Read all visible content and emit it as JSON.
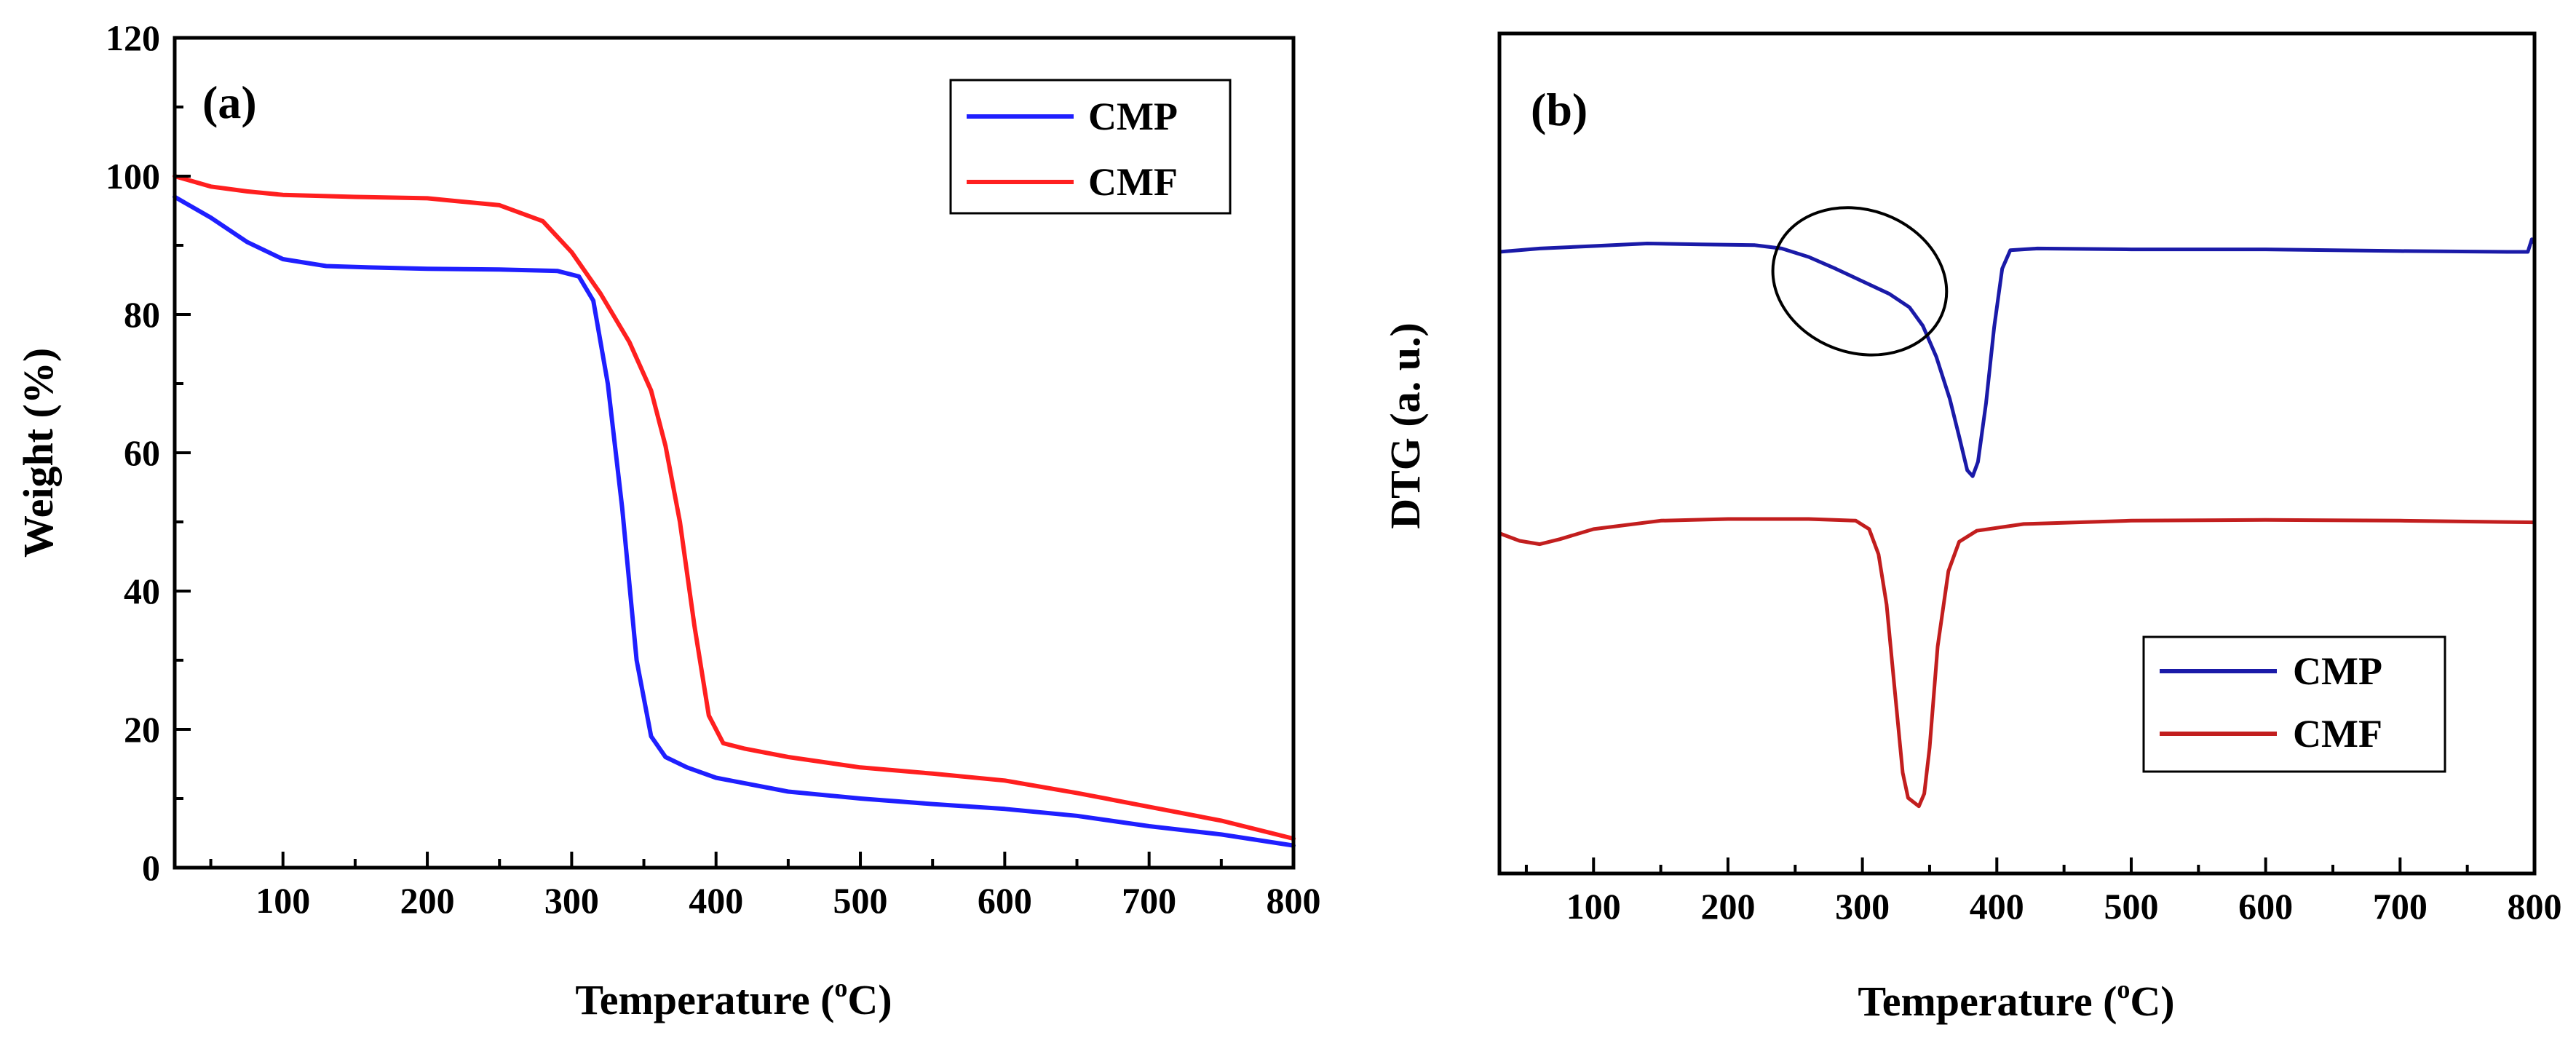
{
  "chart_data": [
    {
      "type": "line",
      "panel_label": "(a)",
      "xlabel": {
        "prefix": "Temperature (",
        "sup": "o",
        "suffix": "C)"
      },
      "ylabel": "Weight (%)",
      "xlim": [
        25,
        800
      ],
      "ylim": [
        0,
        120
      ],
      "xticks": [
        100,
        200,
        300,
        400,
        500,
        600,
        700,
        800
      ],
      "yticks": [
        0,
        20,
        40,
        60,
        80,
        100,
        120
      ],
      "legend_position": "top-right",
      "series": [
        {
          "name": "CMP",
          "color": "#1f1fff",
          "x": [
            25,
            50,
            75,
            100,
            130,
            160,
            200,
            250,
            290,
            305,
            315,
            325,
            335,
            345,
            355,
            365,
            380,
            400,
            450,
            500,
            550,
            600,
            650,
            700,
            750,
            800
          ],
          "y": [
            97,
            94,
            90.5,
            88,
            87,
            86.8,
            86.6,
            86.5,
            86.3,
            85.5,
            82,
            70,
            52,
            30,
            19,
            16,
            14.5,
            13,
            11,
            10,
            9.2,
            8.5,
            7.5,
            6,
            4.8,
            3.2
          ]
        },
        {
          "name": "CMF",
          "color": "#ff1f1f",
          "x": [
            25,
            50,
            75,
            100,
            150,
            200,
            250,
            280,
            300,
            320,
            340,
            355,
            365,
            375,
            385,
            395,
            405,
            420,
            450,
            500,
            550,
            600,
            650,
            700,
            750,
            800
          ],
          "y": [
            100,
            98.5,
            97.8,
            97.3,
            97,
            96.8,
            95.8,
            93.5,
            89,
            83,
            76,
            69,
            61,
            50,
            35,
            22,
            18,
            17.2,
            16,
            14.5,
            13.6,
            12.6,
            10.8,
            8.8,
            6.8,
            4.2
          ]
        }
      ]
    },
    {
      "type": "line",
      "panel_label": "(b)",
      "xlabel": {
        "prefix": "Temperature (",
        "sup": "o",
        "suffix": "C)"
      },
      "ylabel": "DTG (a. u.)",
      "xlim": [
        30,
        800
      ],
      "ylim": [
        0,
        100
      ],
      "xticks": [
        100,
        200,
        300,
        400,
        500,
        600,
        700,
        800
      ],
      "yticks": [],
      "legend_position": "bottom-right",
      "series": [
        {
          "name": "CMP",
          "color": "#1a1aa8",
          "x": [
            30,
            60,
            100,
            140,
            180,
            220,
            240,
            260,
            280,
            300,
            320,
            335,
            345,
            355,
            365,
            372,
            378,
            382,
            386,
            392,
            398,
            404,
            410,
            430,
            500,
            600,
            700,
            780,
            795,
            798,
            800
          ],
          "y": [
            74,
            74.4,
            74.7,
            75,
            74.9,
            74.8,
            74.4,
            73.4,
            72,
            70.5,
            69,
            67.4,
            65.2,
            61.5,
            56.5,
            52,
            48,
            47.3,
            49,
            56,
            65,
            72,
            74.2,
            74.4,
            74.3,
            74.3,
            74.1,
            74,
            74,
            75.5,
            75
          ]
        },
        {
          "name": "CMF",
          "color": "#c21e1e",
          "x": [
            30,
            45,
            60,
            75,
            100,
            150,
            200,
            260,
            295,
            305,
            312,
            318,
            324,
            330,
            334,
            338,
            342,
            346,
            350,
            356,
            364,
            372,
            385,
            420,
            500,
            600,
            700,
            800
          ],
          "y": [
            40.5,
            39.6,
            39.2,
            39.8,
            41,
            42,
            42.2,
            42.2,
            42,
            41,
            38,
            32,
            22,
            12,
            9,
            8.5,
            8,
            9.5,
            15,
            27,
            36,
            39.5,
            40.8,
            41.6,
            42,
            42.1,
            42,
            41.8
          ]
        }
      ],
      "annotations": [
        {
          "type": "ellipse",
          "cx_data": 298,
          "cy_data": 70.5,
          "rx_data": 66,
          "ry_data": 8.5,
          "rotation_deg": 20
        }
      ]
    }
  ]
}
